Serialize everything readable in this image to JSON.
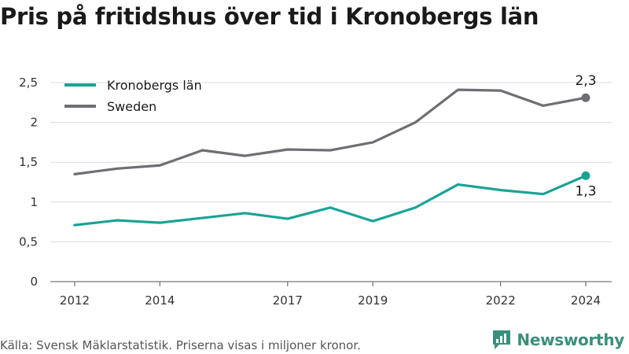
{
  "title": "Pris på fritidshus över tid i Kronobergs län",
  "source": "Källa: Svensk Mäklarstatistik. Priserna visas i miljoner kronor.",
  "brand": {
    "name": "Newsworthy",
    "color": "#3a8f7a"
  },
  "chart_data": {
    "type": "line",
    "x": [
      2012,
      2013,
      2014,
      2015,
      2016,
      2017,
      2018,
      2019,
      2020,
      2021,
      2022,
      2023,
      2024
    ],
    "x_ticks": [
      2012,
      2014,
      2017,
      2019,
      2022,
      2024
    ],
    "y_ticks": [
      "0",
      "0,5",
      "1",
      "1,5",
      "2",
      "2,5"
    ],
    "y_tick_values": [
      0,
      0.5,
      1,
      1.5,
      2,
      2.5
    ],
    "ylim": [
      0,
      2.5
    ],
    "xlim": [
      2012,
      2024
    ],
    "grid": "horizontal",
    "legend_position": "top-left",
    "series": [
      {
        "name": "Kronobergs län",
        "color": "#1aa395",
        "values": [
          0.71,
          0.77,
          0.74,
          0.8,
          0.86,
          0.79,
          0.93,
          0.76,
          0.93,
          1.22,
          1.15,
          1.1,
          1.33
        ],
        "end_label": "1,3"
      },
      {
        "name": "Sweden",
        "color": "#6e6e73",
        "values": [
          1.35,
          1.42,
          1.46,
          1.65,
          1.58,
          1.66,
          1.65,
          1.75,
          2.0,
          2.41,
          2.4,
          2.21,
          2.31
        ],
        "end_label": "2,3"
      }
    ]
  }
}
